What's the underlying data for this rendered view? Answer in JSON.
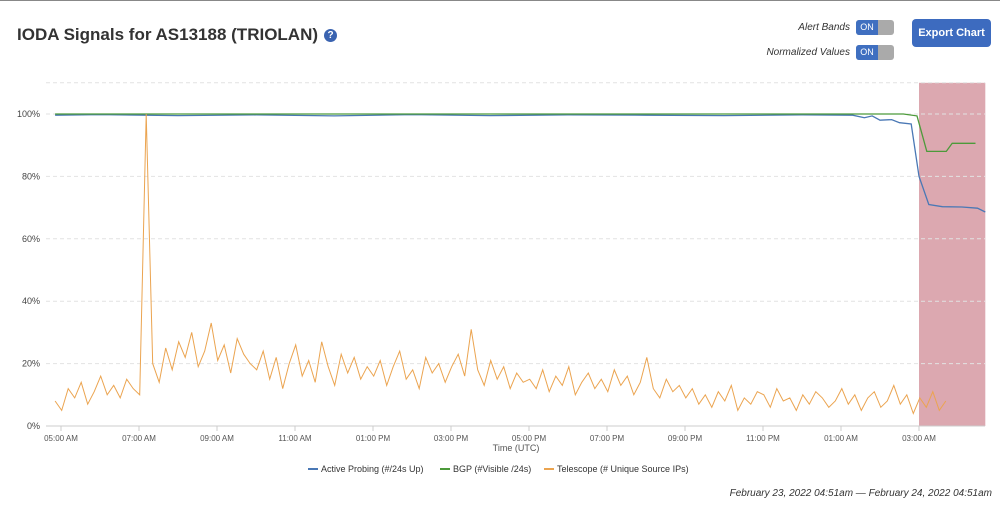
{
  "header": {
    "title": "IODA Signals for AS13188 (TRIOLAN)",
    "help": "?",
    "alert_bands_label": "Alert Bands",
    "alert_bands_state": "ON",
    "normalized_label": "Normalized Values",
    "normalized_state": "ON",
    "export_label": "Export Chart"
  },
  "date_range": "February 23, 2022 04:51am — February 24, 2022 04:51am",
  "chart_data": {
    "type": "line",
    "xlabel": "Time (UTC)",
    "x_units": "hours since 00:00 Feb 23",
    "xlim": [
      4.62,
      28.7
    ],
    "ylim": [
      0,
      110
    ],
    "y_ticks": [
      {
        "v": 0,
        "label": "0%"
      },
      {
        "v": 20,
        "label": "20%"
      },
      {
        "v": 40,
        "label": "40%"
      },
      {
        "v": 60,
        "label": "60%"
      },
      {
        "v": 80,
        "label": "80%"
      },
      {
        "v": 100,
        "label": "100%"
      }
    ],
    "x_ticks": [
      {
        "v": 5,
        "label": "05:00 AM"
      },
      {
        "v": 7,
        "label": "07:00 AM"
      },
      {
        "v": 9,
        "label": "09:00 AM"
      },
      {
        "v": 11,
        "label": "11:00 AM"
      },
      {
        "v": 13,
        "label": "01:00 PM"
      },
      {
        "v": 15,
        "label": "03:00 PM"
      },
      {
        "v": 17,
        "label": "05:00 PM"
      },
      {
        "v": 19,
        "label": "07:00 PM"
      },
      {
        "v": 21,
        "label": "09:00 PM"
      },
      {
        "v": 23,
        "label": "11:00 PM"
      },
      {
        "v": 25,
        "label": "01:00 AM"
      },
      {
        "v": 27,
        "label": "03:00 AM"
      }
    ],
    "alert_band": {
      "from": 27.0,
      "to": 28.7,
      "color": "#dca8b0"
    },
    "series": [
      {
        "name": "Active Probing (#/24s Up)",
        "color": "#4a78b5",
        "points": [
          [
            4.85,
            99.6
          ],
          [
            6,
            99.8
          ],
          [
            8,
            99.5
          ],
          [
            10,
            99.7
          ],
          [
            12,
            99.4
          ],
          [
            14,
            99.8
          ],
          [
            16,
            99.5
          ],
          [
            18,
            99.7
          ],
          [
            20,
            99.6
          ],
          [
            22,
            99.5
          ],
          [
            24,
            99.7
          ],
          [
            25.3,
            99.6
          ],
          [
            25.6,
            98.8
          ],
          [
            25.8,
            99.4
          ],
          [
            26.0,
            98.0
          ],
          [
            26.3,
            98.2
          ],
          [
            26.5,
            97.2
          ],
          [
            26.8,
            96.8
          ],
          [
            27.0,
            80
          ],
          [
            27.25,
            71
          ],
          [
            27.6,
            70.3
          ],
          [
            28.1,
            70.2
          ],
          [
            28.5,
            69.8
          ],
          [
            28.7,
            68.6
          ]
        ]
      },
      {
        "name": "BGP (#Visible /24s)",
        "color": "#4c9a3a",
        "points": [
          [
            4.85,
            100
          ],
          [
            26.6,
            100
          ],
          [
            26.95,
            99.4
          ],
          [
            27.2,
            88
          ],
          [
            27.7,
            88
          ],
          [
            27.85,
            90.6
          ],
          [
            28.45,
            90.6
          ]
        ]
      },
      {
        "name": "Telescope (# Unique Source IPs)",
        "color": "#eba450",
        "x_start": 4.85,
        "x_step_hours": 0.1667,
        "values": [
          8,
          5,
          12,
          9,
          14,
          7,
          11,
          16,
          10,
          13,
          9,
          15,
          12,
          10,
          100,
          20,
          14,
          25,
          18,
          27,
          22,
          30,
          19,
          24,
          33,
          21,
          26,
          17,
          28,
          23,
          20,
          18,
          24,
          15,
          22,
          12,
          20,
          26,
          16,
          21,
          14,
          27,
          19,
          13,
          23,
          17,
          22,
          15,
          19,
          16,
          21,
          13,
          19,
          24,
          15,
          18,
          12,
          22,
          17,
          20,
          14,
          19,
          23,
          16,
          31,
          18,
          13,
          21,
          15,
          19,
          12,
          17,
          14,
          15,
          12,
          18,
          11,
          16,
          13,
          19,
          10,
          14,
          17,
          12,
          15,
          11,
          18,
          13,
          16,
          10,
          14,
          22,
          12,
          9,
          15,
          11,
          13,
          9,
          12,
          7,
          10,
          6,
          11,
          8,
          13,
          5,
          9,
          7,
          11,
          10,
          6,
          12,
          8,
          9,
          5,
          10,
          7,
          11,
          9,
          6,
          8,
          12,
          7,
          10,
          5,
          9,
          11,
          6,
          8,
          13,
          7,
          10,
          4,
          9,
          6,
          11,
          5,
          8
        ]
      }
    ]
  }
}
